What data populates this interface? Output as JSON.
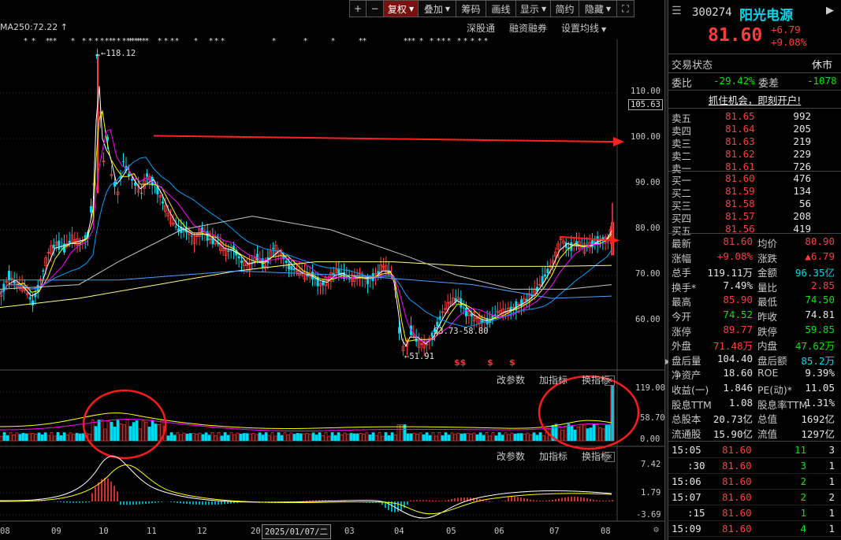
{
  "toolbar": {
    "items": [
      {
        "label": "+",
        "active": false
      },
      {
        "label": "−",
        "active": false
      },
      {
        "label": "复权",
        "active": true,
        "dropdown": true
      },
      {
        "label": "叠加",
        "active": false,
        "dropdown": true
      },
      {
        "label": "筹码",
        "active": false
      },
      {
        "label": "画线",
        "active": false
      },
      {
        "label": "显示",
        "active": false,
        "dropdown": true
      },
      {
        "label": "简约",
        "active": false
      },
      {
        "label": "隐藏",
        "active": false,
        "dropdown": true
      },
      {
        "label": "⛶",
        "active": false
      }
    ]
  },
  "main_chart": {
    "ma_label": "MA250:72.22",
    "links": [
      "深股通",
      "融资融券",
      "设置均线"
    ],
    "high_annotation": "118.12",
    "low_annotation": "51.91",
    "mid_annotation": "53.73-58.80",
    "last_price_box": "105.63",
    "dollar_markers": [
      "$$",
      "$",
      "$"
    ],
    "price_axis": [
      "110.00",
      "100.00",
      "90.00",
      "80.00",
      "70.00",
      "60.00"
    ]
  },
  "volume_panel": {
    "links": [
      "改参数",
      "加指标",
      "换指标"
    ],
    "axis": [
      "119.00",
      "58.70",
      "0.00"
    ]
  },
  "macd_panel": {
    "links": [
      "改参数",
      "加指标",
      "换指标"
    ],
    "axis": [
      "7.42",
      "1.79",
      "-3.69"
    ]
  },
  "x_axis": {
    "months": [
      "08",
      "09",
      "10",
      "11",
      "12",
      "20",
      "03",
      "04",
      "05",
      "06",
      "07",
      "08"
    ],
    "cursor_date": "2025/01/07/二"
  },
  "colors": {
    "up": "#ff3c3c",
    "down": "#00d8f0",
    "ma5": "#ffffff",
    "ma10": "#ffff00",
    "ma20": "#ff00ff",
    "ma60": "#00a0ff",
    "ma250": "#ffff80",
    "annotation_arrow": "#ff2020",
    "circle": "#ff1a1a"
  },
  "chart_data": [
    {
      "type": "candlestick",
      "title": "",
      "series_note": "daily K-line with MA lines",
      "ylim": [
        50,
        120
      ],
      "x": [
        "08",
        "09",
        "10",
        "11",
        "12",
        "2025-01",
        "03",
        "04",
        "05",
        "06",
        "07",
        "08"
      ],
      "close_approx": [
        68,
        72,
        100,
        85,
        78,
        75,
        70,
        55,
        62,
        64,
        78,
        81.6
      ],
      "high": 118.12,
      "low": 51.91,
      "ma250": 72.22
    },
    {
      "type": "bar",
      "title": "",
      "ylim": [
        0,
        119
      ],
      "values_approx": [
        15,
        20,
        70,
        45,
        25,
        20,
        15,
        20,
        25,
        15,
        55,
        119
      ]
    },
    {
      "type": "bar",
      "title": "",
      "ylim": [
        -3.69,
        7.42
      ],
      "values_approx": [
        0.5,
        1,
        7,
        2,
        -1,
        -0.5,
        -0.5,
        -3,
        1,
        0.5,
        1.5,
        1.79
      ]
    }
  ],
  "stock": {
    "code": "300274",
    "name": "阳光电源",
    "price": "81.60",
    "change": "+6.79",
    "change_pct": "+9.08%"
  },
  "status": {
    "label": "交易状态",
    "value": "休市"
  },
  "weibi": {
    "label1": "委比",
    "value1": "-29.42%",
    "label2": "委差",
    "value2": "-1078"
  },
  "promo": "抓住机会，即刻开户!",
  "asks": [
    {
      "label": "卖五",
      "price": "81.65",
      "vol": "992"
    },
    {
      "label": "卖四",
      "price": "81.64",
      "vol": "205"
    },
    {
      "label": "卖三",
      "price": "81.63",
      "vol": "219"
    },
    {
      "label": "卖二",
      "price": "81.62",
      "vol": "229"
    },
    {
      "label": "卖一",
      "price": "81.61",
      "vol": "726"
    }
  ],
  "bids": [
    {
      "label": "买一",
      "price": "81.60",
      "vol": "476"
    },
    {
      "label": "买二",
      "price": "81.59",
      "vol": "134"
    },
    {
      "label": "买三",
      "price": "81.58",
      "vol": "56"
    },
    {
      "label": "买四",
      "price": "81.57",
      "vol": "208"
    },
    {
      "label": "买五",
      "price": "81.56",
      "vol": "419"
    }
  ],
  "stats": [
    {
      "l1": "最新",
      "v1": "81.60",
      "c1": "red",
      "l2": "均价",
      "v2": "80.90",
      "c2": "red"
    },
    {
      "l1": "涨幅",
      "v1": "+9.08%",
      "c1": "red",
      "l2": "涨跌",
      "v2": "▲6.79",
      "c2": "red"
    },
    {
      "l1": "总手",
      "v1": "119.11万",
      "c1": "wht",
      "l2": "金额",
      "v2": "96.35亿",
      "c2": "cyan"
    },
    {
      "l1": "换手*",
      "v1": "7.49%",
      "c1": "wht",
      "l2": "量比",
      "v2": "2.85",
      "c2": "red"
    },
    {
      "l1": "最高",
      "v1": "85.90",
      "c1": "red",
      "l2": "最低",
      "v2": "74.50",
      "c2": "grn"
    },
    {
      "l1": "今开",
      "v1": "74.52",
      "c1": "grn",
      "l2": "昨收",
      "v2": "74.81",
      "c2": "wht"
    },
    {
      "l1": "涨停",
      "v1": "89.77",
      "c1": "red",
      "l2": "跌停",
      "v2": "59.85",
      "c2": "grn"
    },
    {
      "l1": "外盘",
      "v1": "71.48万",
      "c1": "red",
      "l2": "内盘",
      "v2": "47.62万",
      "c2": "grn"
    },
    {
      "l1": "盘后量",
      "v1": "104.40",
      "c1": "wht",
      "l2": "盘后额",
      "v2": "85.2万",
      "c2": "cyan"
    },
    {
      "l1": "净资产",
      "v1": "18.60",
      "c1": "wht",
      "l2": "ROE",
      "v2": "9.39%",
      "c2": "wht"
    },
    {
      "l1": "收益(一)",
      "v1": "1.846",
      "c1": "wht",
      "l2": "PE(动)*",
      "v2": "11.05",
      "c2": "wht"
    },
    {
      "l1": "股息TTM",
      "v1": "1.08",
      "c1": "wht",
      "l2": "股息率TTM",
      "v2": "1.31%",
      "c2": "wht"
    },
    {
      "l1": "总股本",
      "v1": "20.73亿",
      "c1": "wht",
      "l2": "总值",
      "v2": "1692亿",
      "c2": "wht"
    },
    {
      "l1": "流通股",
      "v1": "15.90亿",
      "c1": "wht",
      "l2": "流值",
      "v2": "1297亿",
      "c2": "wht"
    }
  ],
  "ticks": [
    {
      "time": "15:05",
      "price": "81.60",
      "vol": "11",
      "num": "3"
    },
    {
      "time": ":30",
      "price": "81.60",
      "vol": "3",
      "num": "1"
    },
    {
      "time": "15:06",
      "price": "81.60",
      "vol": "2",
      "num": "1"
    },
    {
      "time": "15:07",
      "price": "81.60",
      "vol": "2",
      "num": "2"
    },
    {
      "time": ":15",
      "price": "81.60",
      "vol": "1",
      "num": "1"
    },
    {
      "time": "15:09",
      "price": "81.60",
      "vol": "4",
      "num": "1"
    }
  ]
}
